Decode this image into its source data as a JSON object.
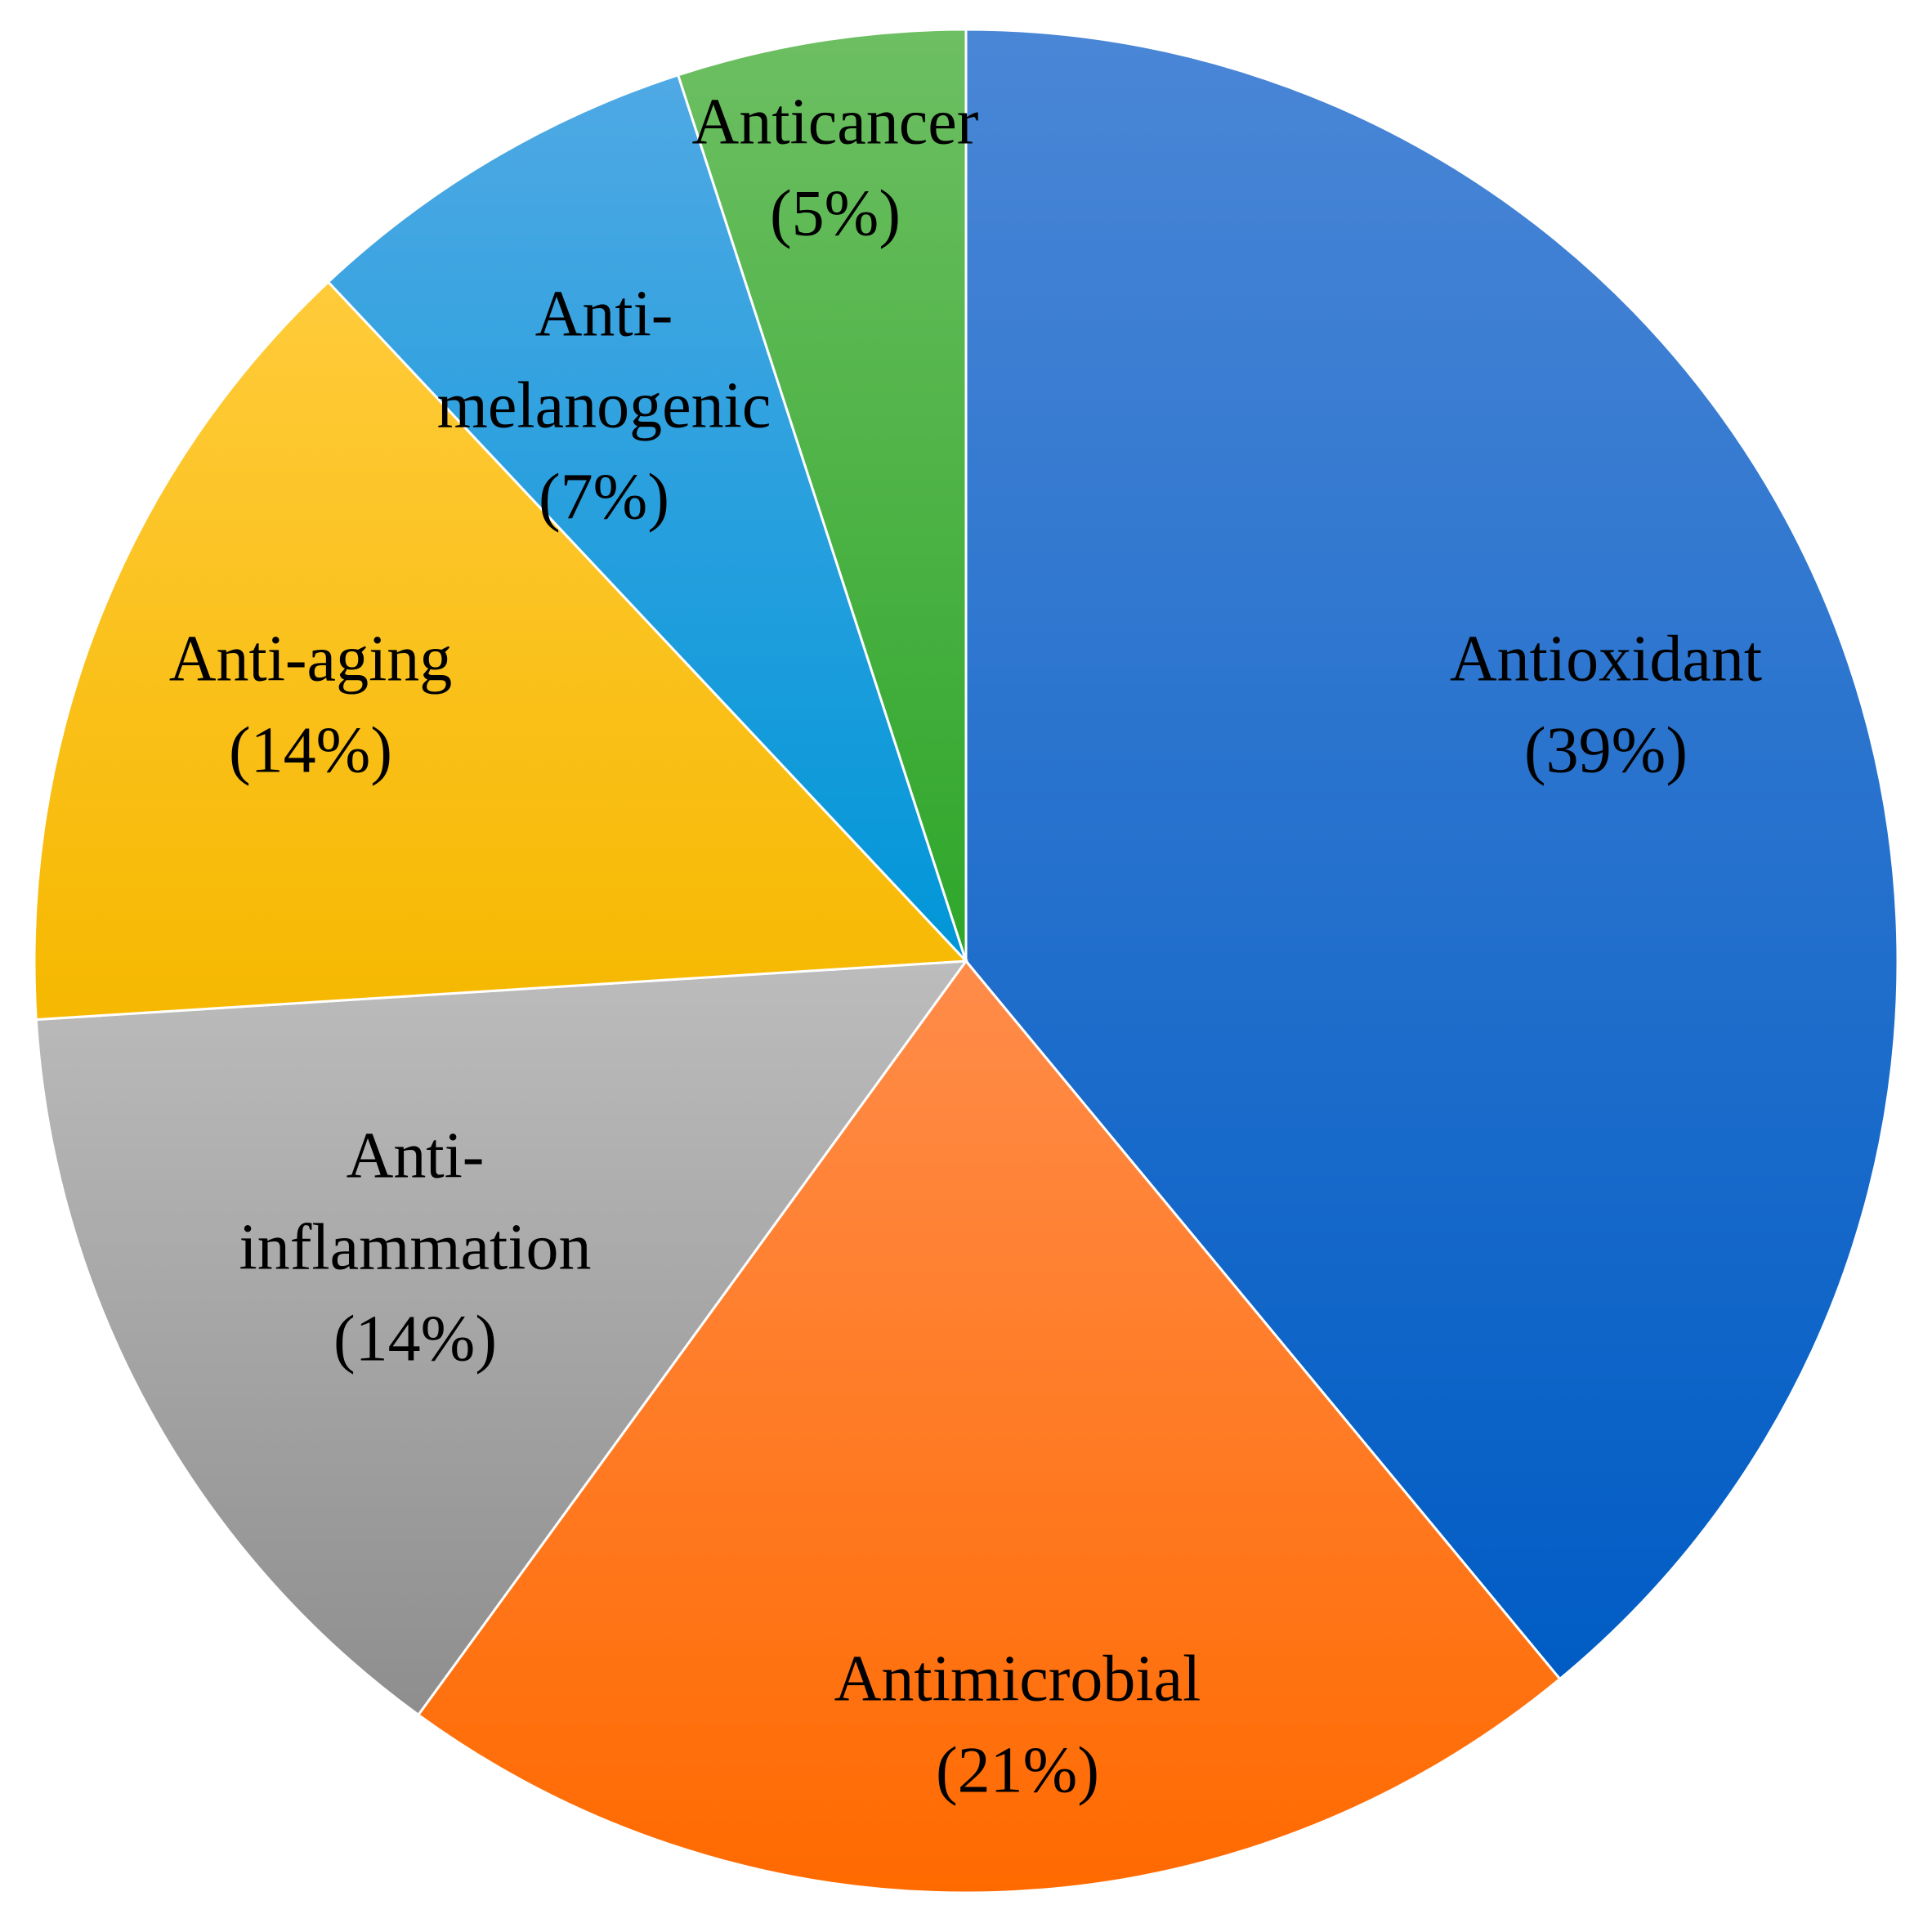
{
  "chart_data": {
    "type": "pie",
    "title": "",
    "start_angle_deg": 0,
    "direction": "clockwise",
    "slices": [
      {
        "label_lines": [
          "Antioxidant",
          "(39%)"
        ],
        "value": 39,
        "color_top": "#4A86D6",
        "color_bottom": "#005CC4"
      },
      {
        "label_lines": [
          "Antimicrobial",
          "(21%)"
        ],
        "value": 21,
        "color_top": "#FF8C4A",
        "color_bottom": "#FF6A00"
      },
      {
        "label_lines": [
          "Anti-",
          "inflammation",
          "(14%)"
        ],
        "value": 14,
        "color_top": "#BCBCBC",
        "color_bottom": "#8E8E8E"
      },
      {
        "label_lines": [
          "Anti-aging",
          "(14%)"
        ],
        "value": 14,
        "color_top": "#FFCB3A",
        "color_bottom": "#F6B800"
      },
      {
        "label_lines": [
          "Anti-",
          "melanogenic",
          "(7%)"
        ],
        "value": 7,
        "color_top": "#4FA9E4",
        "color_bottom": "#0096D8"
      },
      {
        "label_lines": [
          "Anticancer",
          "(5%)"
        ],
        "value": 5,
        "color_top": "#6DBF62",
        "color_bottom": "#2EA62A"
      }
    ]
  }
}
